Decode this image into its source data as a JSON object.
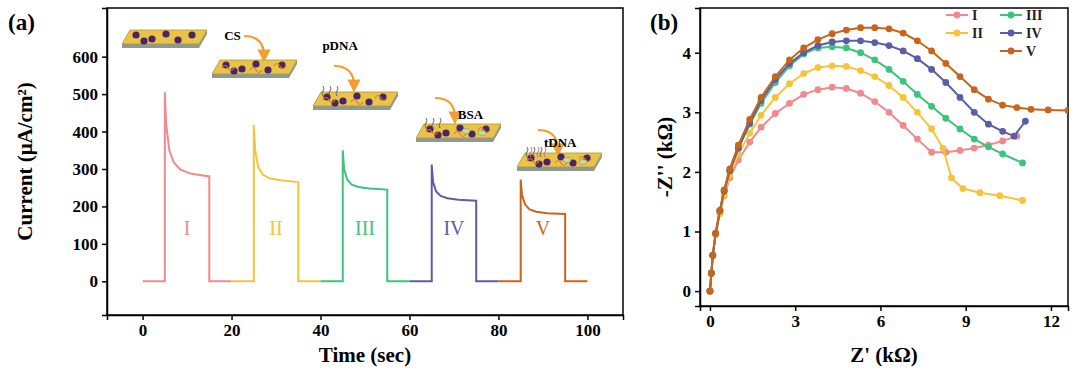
{
  "chart_data": [
    {
      "type": "line",
      "title": "(a)",
      "x_label": "Time (sec)",
      "y_label": "Current (μA/cm²)",
      "xlim": [
        -8,
        108
      ],
      "xticks": [
        0,
        20,
        40,
        60,
        80,
        100
      ],
      "ylim": [
        -90,
        730
      ],
      "yticks": [
        0,
        100,
        200,
        300,
        400,
        500,
        600
      ],
      "grid": false,
      "line_style": "solid",
      "series": [
        {
          "name": "I",
          "color": "#f08a8c",
          "x": [
            0,
            5,
            5,
            5.3,
            6,
            7,
            8.5,
            11,
            15,
            15,
            20
          ],
          "values": [
            0,
            0,
            505,
            420,
            350,
            318,
            298,
            287,
            280,
            0,
            0
          ]
        },
        {
          "name": "II",
          "color": "#f5c43c",
          "x": [
            20,
            25,
            25,
            25.3,
            26,
            27,
            28.5,
            31,
            35,
            35,
            40
          ],
          "values": [
            0,
            0,
            418,
            350,
            305,
            285,
            275,
            270,
            265,
            0,
            0
          ]
        },
        {
          "name": "III",
          "color": "#3cc47c",
          "x": [
            40,
            45,
            45,
            45.3,
            46,
            47,
            48.5,
            51,
            55,
            55,
            60
          ],
          "values": [
            0,
            0,
            350,
            300,
            272,
            258,
            252,
            248,
            245,
            0,
            0
          ]
        },
        {
          "name": "IV",
          "color": "#5b5ea6",
          "x": [
            60,
            65,
            65,
            65.3,
            66,
            67,
            68.5,
            71,
            75,
            75,
            80
          ],
          "values": [
            0,
            0,
            312,
            265,
            240,
            228,
            222,
            218,
            215,
            0,
            0
          ]
        },
        {
          "name": "V",
          "color": "#c8651b",
          "x": [
            80,
            85,
            85,
            85.3,
            86,
            87,
            88.5,
            91,
            95,
            95,
            100
          ],
          "values": [
            0,
            0,
            272,
            230,
            205,
            192,
            186,
            182,
            180,
            0,
            0
          ]
        }
      ],
      "annotations": [
        {
          "text": "CS",
          "x": 20.2,
          "y": 645
        },
        {
          "text": "pDNA",
          "x": 44.4,
          "y": 619
        },
        {
          "text": "BSA",
          "x": 73.7,
          "y": 434
        },
        {
          "text": "tDNA",
          "x": 93.9,
          "y": 359
        }
      ]
    },
    {
      "type": "line",
      "title": "(b)",
      "x_label": "Z' (kΩ)",
      "y_label": "-Z'' (kΩ)",
      "xlim": [
        -0.35,
        12.6
      ],
      "xticks": [
        0,
        3,
        6,
        9,
        12
      ],
      "ylim": [
        -0.25,
        4.75
      ],
      "yticks": [
        0,
        1,
        2,
        3,
        4
      ],
      "grid": false,
      "legend": "upper right",
      "marker": "circle",
      "line_style": "solid",
      "series": [
        {
          "name": "I",
          "color": "#f08a8c",
          "x": [
            0,
            0.05,
            0.1,
            0.2,
            0.35,
            0.5,
            0.7,
            1.0,
            1.4,
            1.8,
            2.3,
            2.8,
            3.3,
            3.8,
            4.3,
            4.8,
            5.3,
            5.8,
            6.3,
            6.8,
            7.3,
            7.8,
            8.3,
            8.8,
            9.3,
            9.8,
            10.3,
            10.8
          ],
          "values": [
            0,
            0.3,
            0.6,
            0.95,
            1.3,
            1.6,
            1.9,
            2.2,
            2.5,
            2.75,
            2.98,
            3.15,
            3.3,
            3.38,
            3.42,
            3.4,
            3.32,
            3.18,
            3.0,
            2.78,
            2.55,
            2.33,
            2.33,
            2.36,
            2.4,
            2.45,
            2.52,
            2.6
          ]
        },
        {
          "name": "II",
          "color": "#f5c43c",
          "x": [
            0,
            0.05,
            0.1,
            0.2,
            0.35,
            0.5,
            0.7,
            1.0,
            1.4,
            1.8,
            2.3,
            2.8,
            3.3,
            3.8,
            4.3,
            4.8,
            5.3,
            5.8,
            6.3,
            6.8,
            7.3,
            7.8,
            8.2,
            8.5,
            8.9,
            9.5,
            10.2,
            11.0
          ],
          "values": [
            0,
            0.3,
            0.6,
            0.95,
            1.3,
            1.62,
            1.95,
            2.3,
            2.65,
            2.95,
            3.25,
            3.48,
            3.65,
            3.75,
            3.78,
            3.77,
            3.7,
            3.6,
            3.45,
            3.25,
            3.0,
            2.72,
            2.4,
            1.9,
            1.72,
            1.65,
            1.6,
            1.52
          ]
        },
        {
          "name": "III",
          "color": "#3cc47c",
          "x": [
            0,
            0.05,
            0.1,
            0.2,
            0.35,
            0.5,
            0.7,
            1.0,
            1.4,
            1.8,
            2.3,
            2.8,
            3.3,
            3.8,
            4.3,
            4.8,
            5.3,
            5.8,
            6.3,
            6.8,
            7.3,
            7.8,
            8.3,
            8.8,
            9.3,
            9.8,
            10.3,
            11.0
          ],
          "values": [
            0,
            0.3,
            0.6,
            0.97,
            1.35,
            1.68,
            2.02,
            2.4,
            2.8,
            3.15,
            3.5,
            3.78,
            3.98,
            4.08,
            4.1,
            4.08,
            4.0,
            3.88,
            3.72,
            3.52,
            3.3,
            3.1,
            2.9,
            2.72,
            2.55,
            2.42,
            2.3,
            2.15
          ]
        },
        {
          "name": "IV",
          "color": "#5b5ea6",
          "x": [
            0,
            0.05,
            0.1,
            0.2,
            0.35,
            0.5,
            0.7,
            1.0,
            1.4,
            1.8,
            2.3,
            2.8,
            3.3,
            3.8,
            4.3,
            4.8,
            5.3,
            5.8,
            6.3,
            6.8,
            7.3,
            7.8,
            8.3,
            8.8,
            9.3,
            9.8,
            10.3,
            10.7,
            11.1
          ],
          "values": [
            0,
            0.3,
            0.6,
            0.97,
            1.35,
            1.68,
            2.02,
            2.4,
            2.82,
            3.2,
            3.55,
            3.82,
            4.0,
            4.12,
            4.18,
            4.2,
            4.2,
            4.17,
            4.12,
            4.03,
            3.9,
            3.72,
            3.5,
            3.25,
            3.0,
            2.8,
            2.68,
            2.6,
            2.85
          ]
        },
        {
          "name": "V",
          "color": "#c8651b",
          "x": [
            0,
            0.05,
            0.1,
            0.2,
            0.35,
            0.5,
            0.7,
            1.0,
            1.4,
            1.8,
            2.3,
            2.8,
            3.3,
            3.8,
            4.3,
            4.8,
            5.3,
            5.8,
            6.3,
            6.8,
            7.3,
            7.8,
            8.3,
            8.8,
            9.3,
            9.8,
            10.3,
            10.8,
            11.3,
            11.9,
            12.6
          ],
          "values": [
            0,
            0.3,
            0.6,
            0.97,
            1.35,
            1.7,
            2.05,
            2.45,
            2.88,
            3.25,
            3.6,
            3.88,
            4.08,
            4.22,
            4.32,
            4.38,
            4.42,
            4.42,
            4.4,
            4.33,
            4.2,
            4.03,
            3.82,
            3.6,
            3.38,
            3.22,
            3.12,
            3.08,
            3.05,
            3.04,
            3.03
          ]
        }
      ]
    }
  ]
}
